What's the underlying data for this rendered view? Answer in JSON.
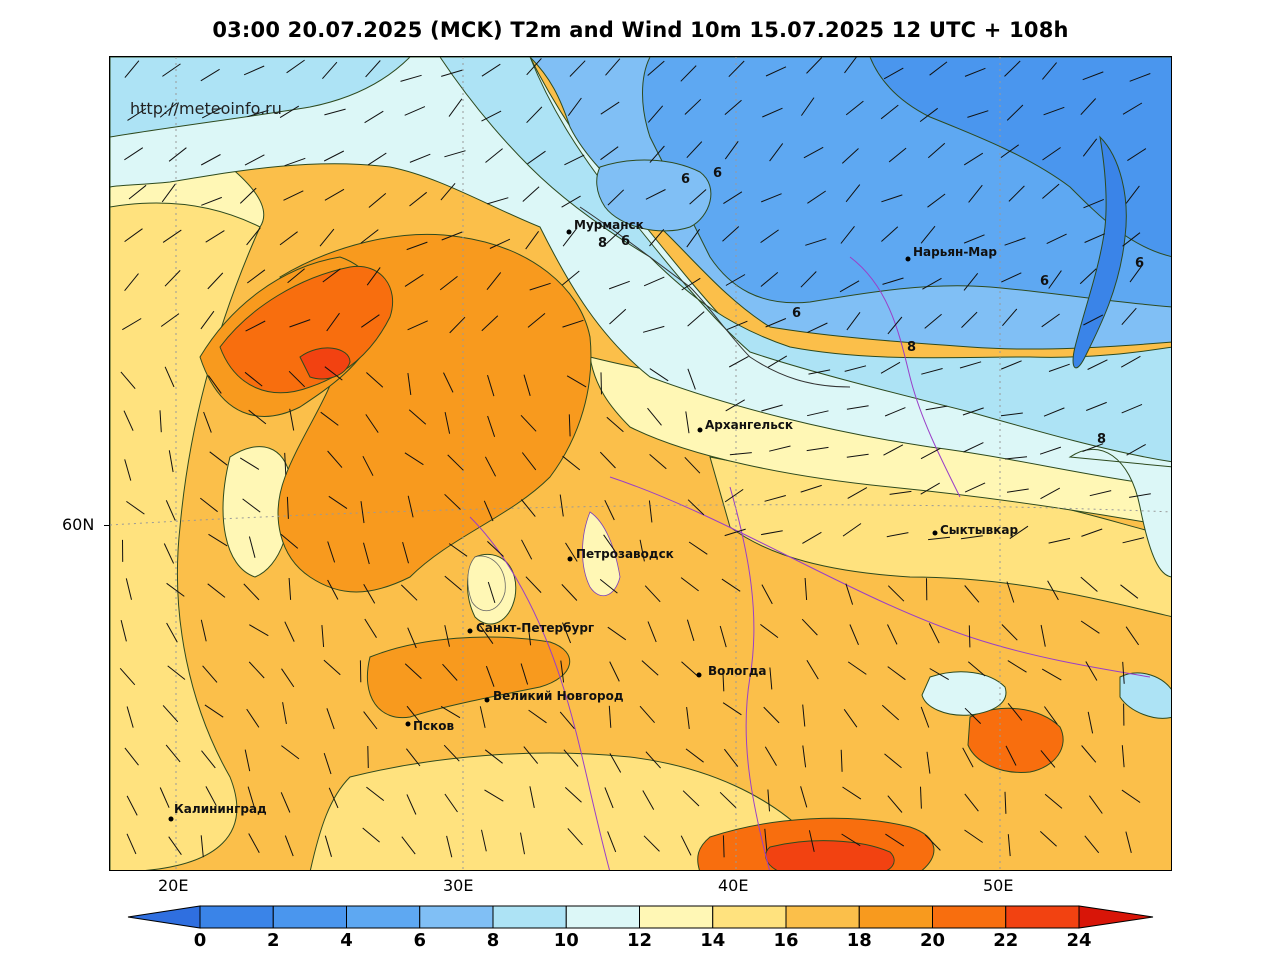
{
  "title": "03:00 20.07.2025 (MCK) T2m and Wind 10m 15.07.2025 12 UTC + 108h",
  "watermark": "http://meteoinfo.ru",
  "axes": {
    "lon_labels": [
      "20E",
      "30E",
      "40E",
      "50E"
    ],
    "lat_labels": [
      "60N"
    ]
  },
  "cities": [
    {
      "name": "Мурманск"
    },
    {
      "name": "Нарьян-Мар"
    },
    {
      "name": "Архангельск"
    },
    {
      "name": "Сыктывкар"
    },
    {
      "name": "Петрозаводск"
    },
    {
      "name": "Санкт-Петербург"
    },
    {
      "name": "Вологда"
    },
    {
      "name": "Великий Новгород"
    },
    {
      "name": "Псков"
    },
    {
      "name": "Калининград"
    }
  ],
  "contour_labels": [
    "6",
    "6",
    "6",
    "8",
    "6",
    "6",
    "8",
    "6",
    "8"
  ],
  "colorbar": {
    "ticks": [
      "0",
      "2",
      "4",
      "6",
      "8",
      "10",
      "12",
      "14",
      "16",
      "18",
      "20",
      "22",
      "24"
    ],
    "colors": [
      "#3a84e8",
      "#4a96ee",
      "#5ea8f2",
      "#80bff5",
      "#ade3f5",
      "#dcf7f7",
      "#fff7b5",
      "#ffe27e",
      "#fbbf4a",
      "#f89a1e",
      "#f86e0e",
      "#f24211",
      "#e0200c"
    ],
    "under_color": "#2f6fe0",
    "over_color": "#d81508"
  }
}
